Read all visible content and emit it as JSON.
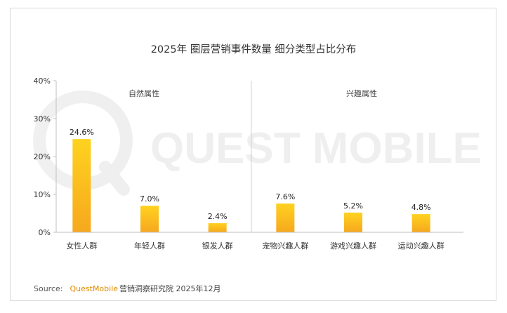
{
  "chart_data": {
    "type": "bar",
    "title": "2025年 圈层营销事件数量 细分类型占比分布",
    "categories": [
      "女性人群",
      "年轻人群",
      "银发人群",
      "宠物兴趣人群",
      "游戏兴趣人群",
      "运动兴趣人群"
    ],
    "values": [
      24.6,
      7.0,
      2.4,
      7.6,
      5.2,
      4.8
    ],
    "value_labels": [
      "24.6%",
      "7.0%",
      "2.4%",
      "7.6%",
      "5.2%",
      "4.8%"
    ],
    "y_ticks": [
      0,
      10,
      20,
      30,
      40
    ],
    "y_tick_labels": [
      "0%",
      "10%",
      "20%",
      "30%",
      "40%"
    ],
    "ylim": [
      0,
      40
    ],
    "groups": [
      {
        "label": "自然属性",
        "category_count": 3
      },
      {
        "label": "兴趣属性",
        "category_count": 3
      }
    ],
    "grid": false,
    "bar_color_top": "#FFD21F",
    "bar_color_bottom": "#F6A81E"
  },
  "watermark": "QUEST MOBILE",
  "source": {
    "prefix": "Source:",
    "brand": "QuestMobile",
    "rest": "营销洞察研究院 2025年12月"
  }
}
